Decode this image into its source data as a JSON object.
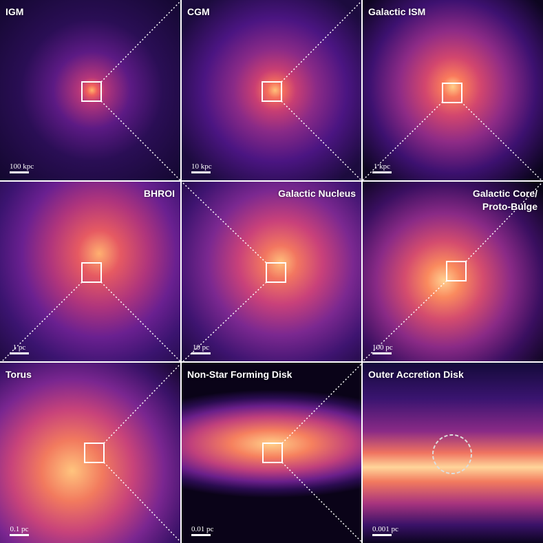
{
  "panels": [
    {
      "title": "IGM",
      "scale": "100 kpc"
    },
    {
      "title": "CGM",
      "scale": "10 kpc"
    },
    {
      "title": "Galactic ISM",
      "scale": "1 kpc"
    },
    {
      "title": "BHROI",
      "scale": "1 pc"
    },
    {
      "title": "Galactic Nucleus",
      "scale": "10 pc"
    },
    {
      "title": "Galactic Core/ Proto-Bulge",
      "scale": "100 pc"
    },
    {
      "title": "Torus",
      "scale": "0.1 pc"
    },
    {
      "title": "Non-Star Forming Disk",
      "scale": "0.01 pc"
    },
    {
      "title": "Outer Accretion Disk",
      "scale": "0.001 pc"
    }
  ]
}
